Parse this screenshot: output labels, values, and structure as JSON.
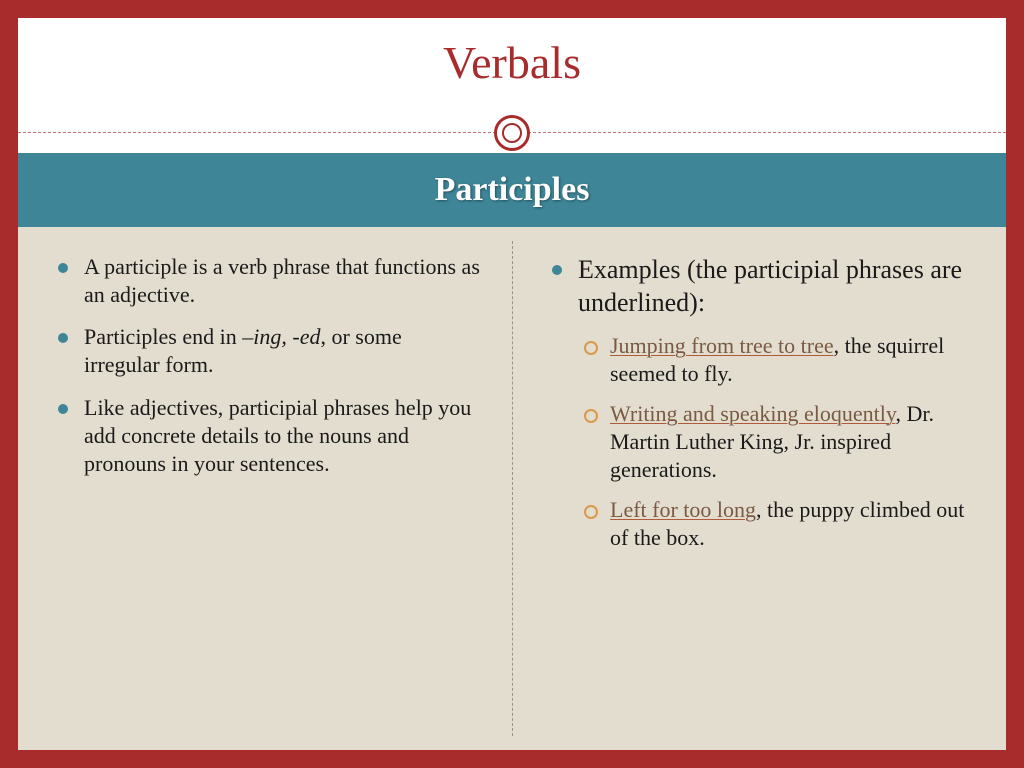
{
  "colors": {
    "border": "#a92c2c",
    "accent_teal": "#3d8597",
    "content_bg": "#e3ddcf",
    "sub_bullet": "#d89a4a",
    "underline": "#b05a3a",
    "underline_text": "#7a5a42",
    "divider_dash": "#c0786e",
    "vdiv_dash": "#9a9486"
  },
  "typography": {
    "title_fontsize": 46,
    "subband_fontsize": 34,
    "lvl1_fontsize": 22,
    "lvl1_big_fontsize": 26,
    "lvl2_fontsize": 22,
    "font_family": "Georgia"
  },
  "title": "Verbals",
  "subband": "Participles",
  "left": {
    "items": [
      "A participle is a verb phrase that functions as an adjective.",
      "",
      "Like adjectives, participial phrases help you add concrete details to the nouns and pronouns in your sentences."
    ],
    "item2_pre": "Participles end in ",
    "item2_it": "–ing, -ed",
    "item2_post": ", or some irregular form."
  },
  "right": {
    "heading": "Examples (the participial phrases are underlined):",
    "ex1_u": "Jumping from tree to tree",
    "ex1_rest": ", the squirrel seemed to fly.",
    "ex2_u": "Writing and speaking eloquently",
    "ex2_rest": ", Dr. Martin Luther King, Jr. inspired generations.",
    "ex3_u": "Left for too long",
    "ex3_rest": ", the puppy climbed out of the box."
  }
}
